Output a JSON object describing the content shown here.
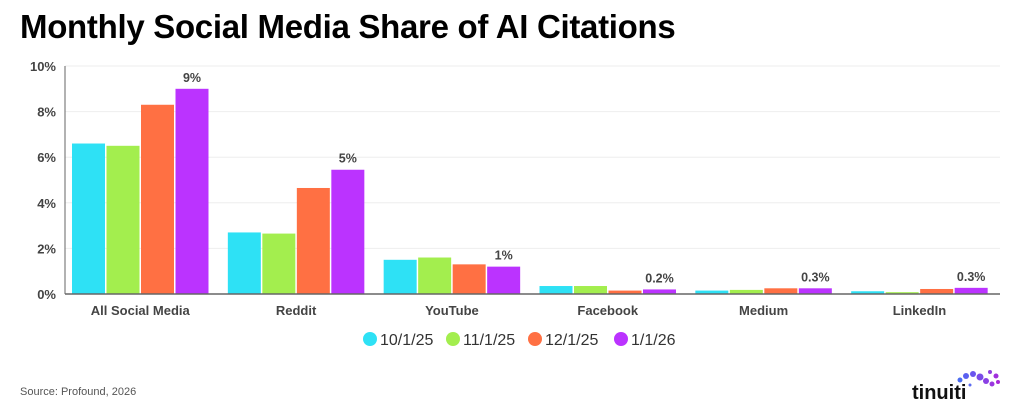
{
  "chart_data": {
    "type": "bar",
    "title": "Monthly Social Media Share of AI Citations",
    "categories": [
      "All Social Media",
      "Reddit",
      "YouTube",
      "Facebook",
      "Medium",
      "LinkedIn"
    ],
    "series": [
      {
        "name": "10/1/25",
        "color": "#2EE1F5",
        "values": [
          6.6,
          2.7,
          1.5,
          0.35,
          0.15,
          0.12
        ]
      },
      {
        "name": "11/1/25",
        "color": "#A3EE4E",
        "values": [
          6.5,
          2.65,
          1.6,
          0.35,
          0.18,
          0.08
        ]
      },
      {
        "name": "12/1/25",
        "color": "#FF7043",
        "values": [
          8.3,
          4.65,
          1.3,
          0.15,
          0.25,
          0.22
        ]
      },
      {
        "name": "1/1/26",
        "color": "#BB33FF",
        "values": [
          9.0,
          5.45,
          1.2,
          0.2,
          0.25,
          0.27
        ]
      }
    ],
    "data_labels": [
      "9%",
      "5%",
      "1%",
      "0.2%",
      "0.3%",
      "0.3%"
    ],
    "yticks": [
      "0%",
      "2%",
      "4%",
      "6%",
      "8%",
      "10%"
    ],
    "ylim": [
      0,
      10
    ],
    "grid": true,
    "legend": "bottom-center",
    "source": "Source: Profound, 2026"
  },
  "brand": {
    "logo_text": "tinuiti"
  }
}
